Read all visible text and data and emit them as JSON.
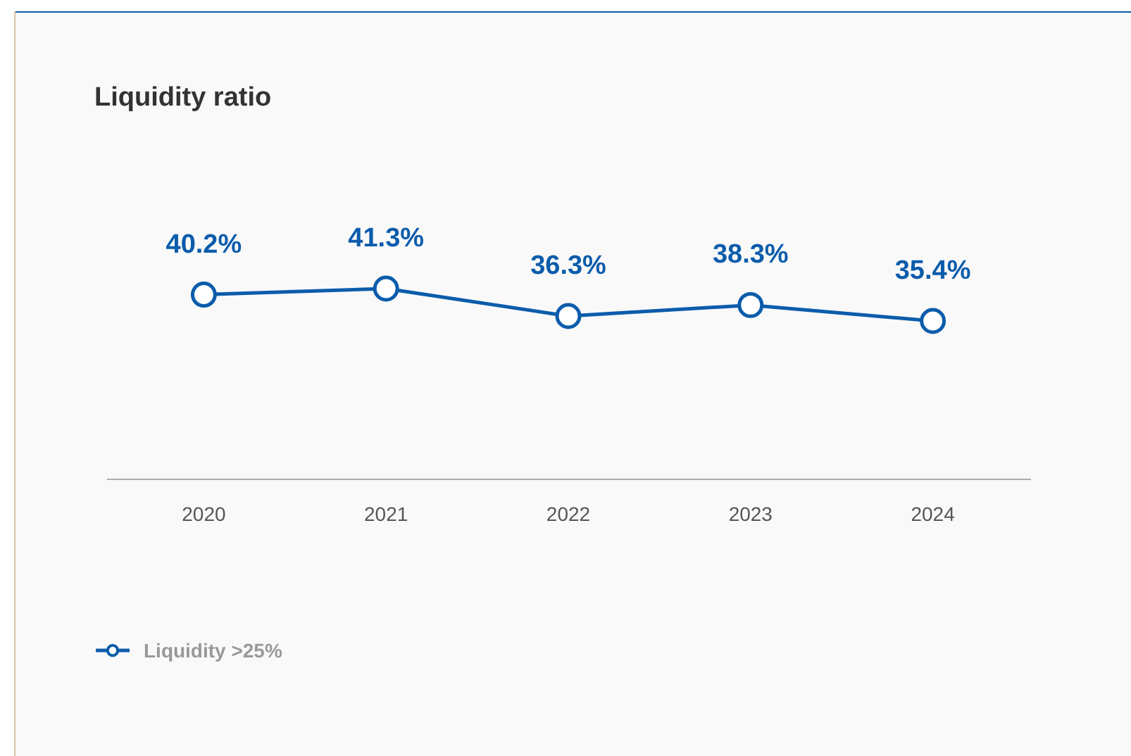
{
  "chart_data": {
    "type": "line",
    "title": "Liquidity ratio",
    "categories": [
      "2020",
      "2021",
      "2022",
      "2023",
      "2024"
    ],
    "series": [
      {
        "name": "Liquidity >25%",
        "color": "#0b5cab",
        "values": [
          40.2,
          41.3,
          36.3,
          38.3,
          35.4
        ],
        "value_labels": [
          "40.2%",
          "41.3%",
          "36.3%",
          "38.3%",
          "35.4%"
        ]
      }
    ],
    "tick_labels": "x",
    "legend": "bottom left",
    "marker": "circle",
    "line_style": "solid"
  }
}
